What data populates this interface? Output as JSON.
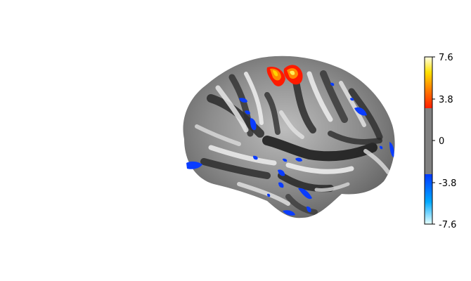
{
  "figure": {
    "surface_background": "#ffffff",
    "activation_colors": {
      "positive": [
        "#ff1a00",
        "#ff6a00",
        "#ffb000",
        "#ffff66"
      ],
      "negative": [
        "#0048ff",
        "#0a3cff"
      ]
    }
  },
  "colorbar": {
    "ticks": [
      {
        "label": "7.6",
        "value": 7.6
      },
      {
        "label": "3.8",
        "value": 3.8
      },
      {
        "label": "0",
        "value": 0
      },
      {
        "label": "-3.8",
        "value": -3.8
      },
      {
        "label": "-7.6",
        "value": -7.6
      }
    ],
    "vmin": -7.6,
    "vmax": 7.6,
    "threshold": 2.6,
    "colors": {
      "max": "#ffffe0",
      "upper_mid": "#ffd000",
      "upper_threshold": "#ff1e00",
      "threshold_gray": "#808080",
      "lower_threshold": "#0040ff",
      "lower_mid": "#00b0ff",
      "min": "#e0ffff"
    }
  }
}
